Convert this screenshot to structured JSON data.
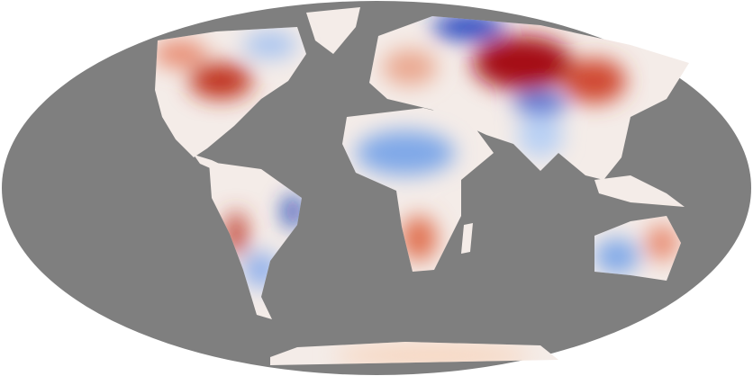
{
  "map": {
    "projection": "mollweide",
    "colors": {
      "background": "#ffffff",
      "ocean": "#7f7f7f",
      "neutral": "#f4f1f0",
      "warm": "#d7301f",
      "hot": "#a50f15",
      "cool": "#7fa8e8",
      "cold": "#1030b0"
    },
    "anomalies": [
      {
        "region": "north-america-east",
        "kind": "hot"
      },
      {
        "region": "central-asia",
        "kind": "hot"
      },
      {
        "region": "siberia-west",
        "kind": "cold"
      },
      {
        "region": "sahara-central",
        "kind": "cool"
      },
      {
        "region": "brazil-northeast",
        "kind": "cold"
      },
      {
        "region": "andes",
        "kind": "warm"
      },
      {
        "region": "australia-west",
        "kind": "cool"
      },
      {
        "region": "southern-africa",
        "kind": "warm"
      }
    ]
  }
}
